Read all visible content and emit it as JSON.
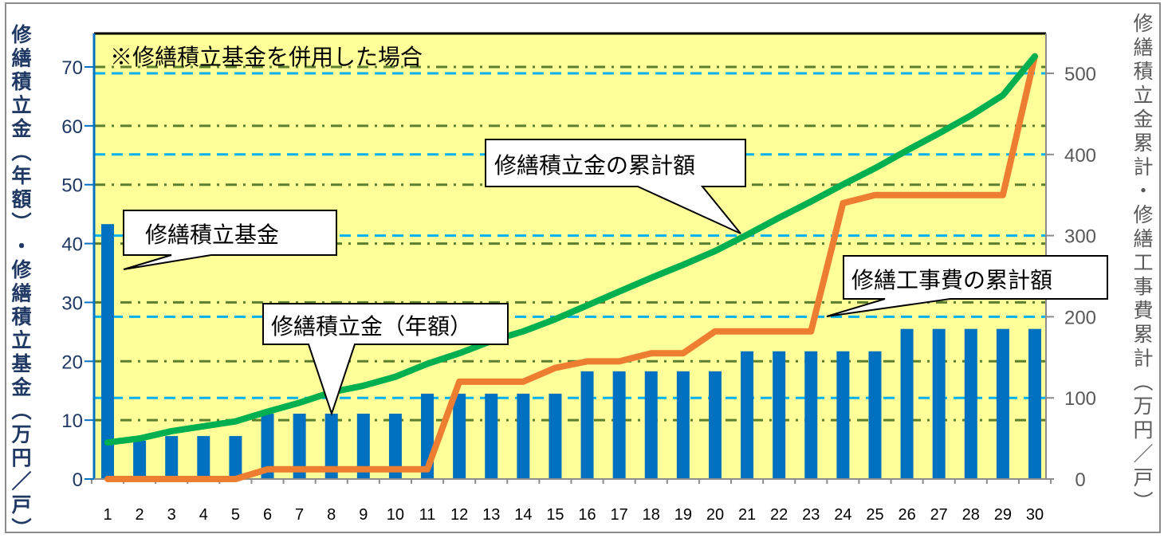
{
  "chart_data": {
    "type": "bar+line",
    "title": "",
    "note": "※修繕積立基金を併用した場合",
    "categories": [
      "1",
      "2",
      "3",
      "4",
      "5",
      "6",
      "7",
      "8",
      "9",
      "10",
      "11",
      "12",
      "13",
      "14",
      "15",
      "16",
      "17",
      "18",
      "19",
      "20",
      "21",
      "22",
      "23",
      "24",
      "25",
      "26",
      "27",
      "28",
      "29",
      "30"
    ],
    "xlabel": "",
    "y_left": {
      "label": "修繕積立金（年額）・修繕積立基金（万円／戸）",
      "ticks": [
        0,
        10,
        20,
        30,
        40,
        50,
        60,
        70
      ],
      "range": [
        0,
        75
      ],
      "color": "#0070c0"
    },
    "y_right": {
      "label": "修繕積立金累計・修繕工事費累計（万円／戸）",
      "ticks": [
        0,
        100,
        200,
        300,
        400,
        500
      ],
      "range": [
        0,
        550
      ],
      "color": "#595959"
    },
    "grid": {
      "left_major": "dash-dot, olive #5b7f2e",
      "right_major": "dashed, cyan #00b0f0"
    },
    "series": [
      {
        "name": "修繕積立金（年額）・修繕積立基金",
        "type": "bar",
        "axis": "left",
        "color": "#0070c0",
        "values": [
          43.3,
          6.5,
          7.3,
          7.3,
          7.3,
          11.1,
          11.1,
          11.1,
          11.1,
          11.1,
          14.5,
          14.5,
          14.5,
          14.5,
          14.5,
          18.3,
          18.3,
          18.3,
          18.3,
          18.3,
          21.7,
          21.7,
          21.7,
          21.7,
          21.7,
          25.5,
          25.5,
          25.5,
          25.5,
          25.5
        ]
      },
      {
        "name": "修繕積立金の累計額",
        "type": "line",
        "axis": "right",
        "color": "#00b050",
        "values": [
          45,
          50,
          59,
          65,
          71,
          83,
          94,
          107,
          115,
          126,
          142,
          155,
          170,
          182,
          197,
          214,
          231,
          248,
          264,
          281,
          301,
          322,
          342,
          363,
          383,
          405,
          426,
          448,
          473,
          521
        ]
      },
      {
        "name": "修繕工事費の累計額",
        "type": "line",
        "axis": "right",
        "color": "#ed7d31",
        "values": [
          0,
          0,
          0,
          0,
          0,
          12,
          12,
          12,
          12,
          12,
          12,
          120,
          120,
          120,
          137,
          145,
          145,
          155,
          155,
          182,
          182,
          182,
          182,
          340,
          350,
          350,
          350,
          350,
          350,
          521
        ]
      }
    ],
    "annotations": [
      {
        "text": "修繕積立基金",
        "target": "bar year 1"
      },
      {
        "text": "修繕積立金（年額）",
        "target": "bar year 8"
      },
      {
        "text": "修繕積立金の累計額",
        "target": "green line year 20"
      },
      {
        "text": "修繕工事費の累計額",
        "target": "orange line year 23"
      }
    ]
  },
  "labels": {
    "note": "※修繕積立基金を併用した場合",
    "callout_fund": "修繕積立基金",
    "callout_annual": "修繕積立金（年額）",
    "callout_cum_reserve": "修繕積立金の累計額",
    "callout_cum_cost": "修繕工事費の累計額",
    "left_axis_title": [
      "修",
      "繕",
      "積",
      "立",
      "金",
      "︵",
      "年",
      "額",
      "︶",
      "・",
      "修",
      "繕",
      "積",
      "立",
      "基",
      "金",
      "︵",
      "万",
      "円",
      "／",
      "戸",
      "︶"
    ],
    "right_axis_title": [
      "修",
      "繕",
      "積",
      "立",
      "金",
      "累",
      "計",
      "・",
      "修",
      "繕",
      "工",
      "事",
      "費",
      "累",
      "計",
      "︵",
      "万",
      "円",
      "／",
      "戸",
      "︶"
    ]
  }
}
